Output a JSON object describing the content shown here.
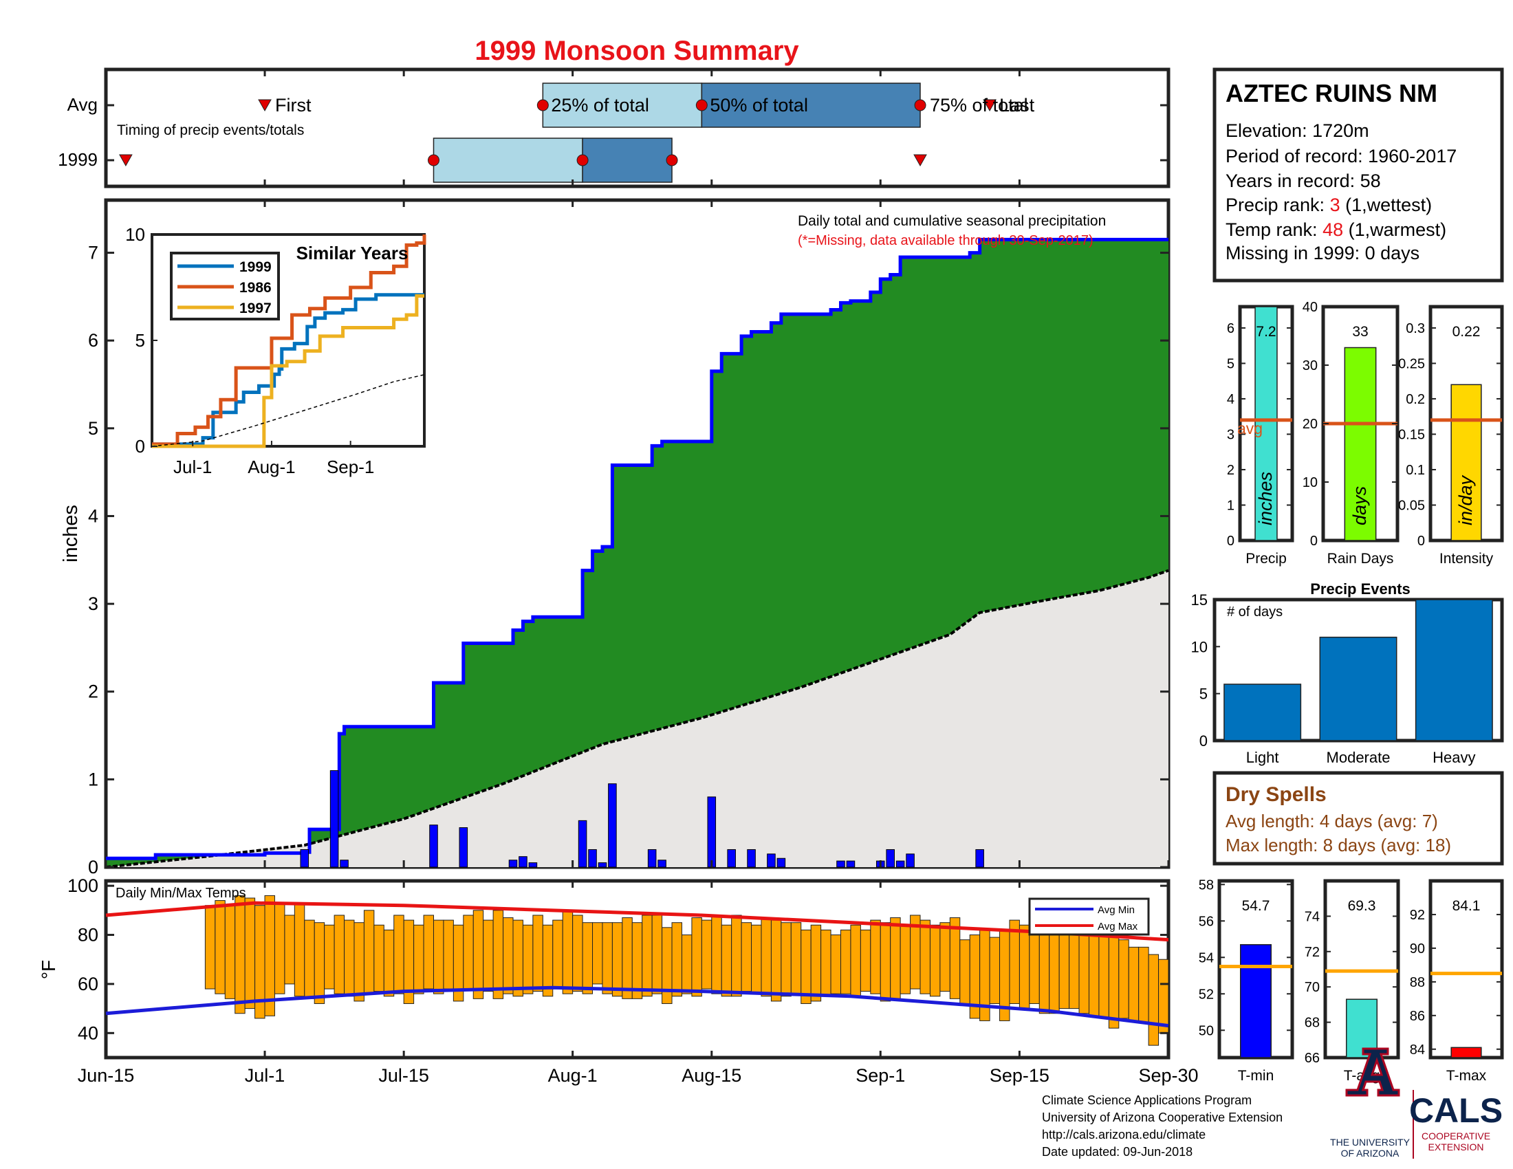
{
  "title": "1999 Monsoon Summary",
  "station": {
    "name": "AZTEC RUINS NM",
    "elevation": "Elevation: 1720m",
    "period": "Period of record: 1960-2017",
    "years": "Years in record: 58",
    "precip_rank_label": "Precip rank: ",
    "precip_rank_value": "3",
    "precip_rank_note": " (1,wettest)",
    "temp_rank_label": "Temp rank: ",
    "temp_rank_value": "48",
    "temp_rank_note": " (1,warmest)",
    "missing": "Missing in 1999: 0 days"
  },
  "colors": {
    "title_red": "#e8141a",
    "cumulative_fill": "#228b22",
    "cumulative_line": "#0000ff",
    "average_fill": "#e8e6e4",
    "daily_bars": "#0000ff",
    "timing_light": "#add8e6",
    "timing_dark": "#4682b4",
    "temp_bars": "#ffa500",
    "avg_min_line": "#1c1cd8",
    "avg_max_line": "#e81414",
    "orange_avg": "#d95319",
    "dry_spells_text": "#8b4513",
    "event_bars": "#0072bd"
  },
  "x_ticks": [
    "Jun-15",
    "Jul-1",
    "Jul-15",
    "Aug-1",
    "Aug-15",
    "Sep-1",
    "Sep-15",
    "Sep-30"
  ],
  "timing": {
    "row_labels": [
      "Avg",
      "1999"
    ],
    "caption": "Timing of precip events/totals",
    "first_label": "First",
    "last_label": "Last",
    "pct25_label": "25% of total",
    "pct50_label": "50% of total",
    "pct75_label": "75% of total",
    "avg": {
      "first": 16,
      "p25": 44,
      "p50": 60,
      "p75": 82,
      "last": 89
    },
    "y1999": {
      "first": 2,
      "p25": 33,
      "p50": 48,
      "p75": 57,
      "last": 82
    }
  },
  "chart_data": [
    {
      "type": "area",
      "name": "main_precip",
      "legend_title": "Daily total and cumulative seasonal precipitation",
      "legend_note": "(*=Missing, data available through 30-Sep-2017)",
      "ylabel": "inches",
      "ylim": [
        0,
        7.6
      ],
      "yticks": [
        0,
        1,
        2,
        3,
        4,
        5,
        6,
        7
      ],
      "x_range_days": [
        0,
        107
      ],
      "cumulative_1999": [
        [
          0,
          0.1
        ],
        [
          5,
          0.14
        ],
        [
          16,
          0.16
        ],
        [
          20,
          0.17
        ],
        [
          20.5,
          0.43
        ],
        [
          23,
          0.43
        ],
        [
          23.5,
          1.52
        ],
        [
          24,
          1.6
        ],
        [
          33,
          2.1
        ],
        [
          36,
          2.55
        ],
        [
          41,
          2.7
        ],
        [
          42,
          2.8
        ],
        [
          43,
          2.85
        ],
        [
          48,
          3.38
        ],
        [
          49,
          3.6
        ],
        [
          50,
          3.65
        ],
        [
          51,
          4.58
        ],
        [
          55,
          4.8
        ],
        [
          56,
          4.85
        ],
        [
          61,
          5.65
        ],
        [
          62,
          5.85
        ],
        [
          64,
          6.05
        ],
        [
          65,
          6.1
        ],
        [
          67,
          6.2
        ],
        [
          68,
          6.3
        ],
        [
          73,
          6.35
        ],
        [
          74,
          6.43
        ],
        [
          75,
          6.45
        ],
        [
          77,
          6.55
        ],
        [
          78,
          6.7
        ],
        [
          79,
          6.75
        ],
        [
          80,
          6.95
        ],
        [
          87,
          7.0
        ],
        [
          88,
          7.15
        ],
        [
          107,
          7.15
        ]
      ],
      "average_cumulative": [
        [
          0,
          0.0
        ],
        [
          10,
          0.12
        ],
        [
          20,
          0.25
        ],
        [
          30,
          0.55
        ],
        [
          40,
          0.95
        ],
        [
          50,
          1.4
        ],
        [
          60,
          1.7
        ],
        [
          70,
          2.05
        ],
        [
          75,
          2.25
        ],
        [
          80,
          2.45
        ],
        [
          85,
          2.65
        ],
        [
          88,
          2.9
        ],
        [
          95,
          3.05
        ],
        [
          100,
          3.15
        ],
        [
          105,
          3.3
        ],
        [
          107,
          3.38
        ]
      ],
      "daily_1999": [
        [
          20,
          0.2
        ],
        [
          23,
          1.1
        ],
        [
          24,
          0.08
        ],
        [
          33,
          0.48
        ],
        [
          36,
          0.45
        ],
        [
          41,
          0.08
        ],
        [
          42,
          0.12
        ],
        [
          43,
          0.05
        ],
        [
          48,
          0.53
        ],
        [
          49,
          0.2
        ],
        [
          50,
          0.05
        ],
        [
          51,
          0.95
        ],
        [
          55,
          0.2
        ],
        [
          56,
          0.08
        ],
        [
          61,
          0.8
        ],
        [
          63,
          0.2
        ],
        [
          65,
          0.2
        ],
        [
          67,
          0.15
        ],
        [
          68,
          0.1
        ],
        [
          74,
          0.07
        ],
        [
          75,
          0.07
        ],
        [
          78,
          0.07
        ],
        [
          79,
          0.2
        ],
        [
          80,
          0.07
        ],
        [
          81,
          0.15
        ],
        [
          88,
          0.2
        ]
      ]
    },
    {
      "type": "line",
      "name": "similar_years",
      "title": "Similar Years",
      "ylim": [
        0,
        10
      ],
      "yticks": [
        0,
        5,
        10
      ],
      "xticks": [
        "Jul-1",
        "Aug-1",
        "Sep-1"
      ],
      "series": [
        {
          "name": "1999",
          "color": "#0072bd",
          "values": [
            [
              0,
              0.1
            ],
            [
              20,
              0.4
            ],
            [
              24,
              1.6
            ],
            [
              33,
              2.1
            ],
            [
              36,
              2.55
            ],
            [
              42,
              2.85
            ],
            [
              48,
              3.4
            ],
            [
              50,
              3.65
            ],
            [
              51,
              4.6
            ],
            [
              56,
              4.85
            ],
            [
              61,
              5.65
            ],
            [
              64,
              6.05
            ],
            [
              68,
              6.3
            ],
            [
              75,
              6.45
            ],
            [
              80,
              6.95
            ],
            [
              88,
              7.15
            ],
            [
              107,
              7.15
            ]
          ]
        },
        {
          "name": "1986",
          "color": "#d95319",
          "values": [
            [
              0,
              0.1
            ],
            [
              10,
              0.6
            ],
            [
              17,
              0.9
            ],
            [
              22,
              1.4
            ],
            [
              27,
              2.2
            ],
            [
              33,
              3.7
            ],
            [
              40,
              3.7
            ],
            [
              47,
              5.1
            ],
            [
              55,
              6.2
            ],
            [
              62,
              6.5
            ],
            [
              68,
              7.0
            ],
            [
              73,
              7.0
            ],
            [
              78,
              7.5
            ],
            [
              86,
              8.2
            ],
            [
              95,
              8.5
            ],
            [
              100,
              9.5
            ],
            [
              104,
              9.6
            ],
            [
              107,
              10.0
            ]
          ]
        },
        {
          "name": "1997",
          "color": "#edb120",
          "values": [
            [
              0,
              0.0
            ],
            [
              40,
              0.0
            ],
            [
              44,
              2.3
            ],
            [
              47,
              3.8
            ],
            [
              53,
              4.0
            ],
            [
              60,
              4.5
            ],
            [
              66,
              5.2
            ],
            [
              70,
              5.2
            ],
            [
              75,
              5.6
            ],
            [
              80,
              5.6
            ],
            [
              90,
              5.6
            ],
            [
              95,
              6.0
            ],
            [
              100,
              6.2
            ],
            [
              104,
              7.1
            ],
            [
              107,
              7.1
            ]
          ]
        },
        {
          "name": "average",
          "color": "#000000",
          "dashed": true,
          "values": [
            [
              0,
              0.0
            ],
            [
              20,
              0.25
            ],
            [
              40,
              0.95
            ],
            [
              60,
              1.7
            ],
            [
              80,
              2.45
            ],
            [
              95,
              3.05
            ],
            [
              107,
              3.38
            ]
          ]
        }
      ]
    },
    {
      "type": "bar",
      "name": "daily_temps",
      "title": "Daily Min/Max Temps",
      "ylabel": "°F",
      "ylim": [
        30,
        102
      ],
      "yticks": [
        40,
        60,
        80,
        100
      ],
      "legend": [
        "Avg Min",
        "Avg Max"
      ],
      "bar_range": [
        10,
        107
      ],
      "avg_min": [
        [
          0,
          48
        ],
        [
          15,
          53
        ],
        [
          30,
          57
        ],
        [
          45,
          58.5
        ],
        [
          60,
          57
        ],
        [
          75,
          55
        ],
        [
          85,
          52
        ],
        [
          95,
          49
        ],
        [
          107,
          43
        ]
      ],
      "avg_max": [
        [
          0,
          88
        ],
        [
          15,
          93
        ],
        [
          30,
          92
        ],
        [
          45,
          90
        ],
        [
          60,
          88
        ],
        [
          75,
          85
        ],
        [
          85,
          83
        ],
        [
          95,
          81
        ],
        [
          107,
          78
        ]
      ],
      "daily_min": [
        58,
        56,
        54,
        48,
        50,
        46,
        47,
        56,
        60,
        55,
        54,
        52,
        58,
        56,
        55,
        53,
        56,
        57,
        55,
        56,
        52,
        56,
        58,
        56,
        58,
        53,
        58,
        54,
        57,
        54,
        56,
        55,
        56,
        57,
        55,
        58,
        56,
        57,
        56,
        60,
        56,
        55,
        54,
        54,
        55,
        56,
        52,
        55,
        56,
        55,
        58,
        56,
        55,
        55,
        57,
        56,
        55,
        53,
        55,
        56,
        52,
        53,
        55,
        56,
        56,
        55,
        57,
        56,
        53,
        54,
        56,
        58,
        56,
        55,
        57,
        54,
        52,
        46,
        45,
        52,
        45,
        52,
        50,
        52,
        48,
        48,
        50,
        50,
        48,
        47,
        46,
        42,
        46,
        45,
        44,
        35,
        40
      ],
      "daily_max": [
        92,
        94,
        92,
        96,
        95,
        92,
        96,
        93,
        88,
        93,
        86,
        85,
        84,
        88,
        86,
        85,
        90,
        84,
        82,
        88,
        86,
        84,
        88,
        86,
        86,
        84,
        88,
        90,
        86,
        90,
        87,
        86,
        84,
        88,
        84,
        86,
        90,
        88,
        85,
        85,
        85,
        85,
        87,
        85,
        88,
        88,
        83,
        85,
        80,
        87,
        86,
        88,
        84,
        88,
        85,
        84,
        87,
        86,
        85,
        85,
        82,
        84,
        82,
        80,
        82,
        84,
        82,
        86,
        85,
        87,
        84,
        88,
        86,
        84,
        85,
        87,
        78,
        80,
        82,
        79,
        82,
        86,
        84,
        85,
        86,
        84,
        82,
        80,
        80,
        82,
        80,
        82,
        78,
        75,
        75,
        72,
        70
      ]
    },
    {
      "type": "bar",
      "name": "precip_bar",
      "xlabel": "Precip",
      "unit_label": "inches",
      "value": 7.2,
      "value_label": "7.2",
      "avg": 3.4,
      "avg_label": "avg",
      "ylim": [
        0,
        6.6
      ],
      "yticks": [
        0,
        1,
        2,
        3,
        4,
        5,
        6
      ],
      "color": "#40e0d0"
    },
    {
      "type": "bar",
      "name": "rain_days_bar",
      "xlabel": "Rain Days",
      "unit_label": "days",
      "value": 33,
      "value_label": "33",
      "avg": 20,
      "ylim": [
        0,
        40
      ],
      "yticks": [
        0,
        10,
        20,
        30,
        40
      ],
      "color": "#7cfc00"
    },
    {
      "type": "bar",
      "name": "intensity_bar",
      "xlabel": "Intensity",
      "unit_label": "in/day",
      "value": 0.22,
      "value_label": "0.22",
      "avg": 0.17,
      "ylim": [
        0,
        0.33
      ],
      "yticks": [
        "0",
        "0.05",
        "0.1",
        "0.15",
        "0.2",
        "0.25",
        "0.3"
      ],
      "ytick_values": [
        0,
        0.05,
        0.1,
        0.15,
        0.2,
        0.25,
        0.3
      ],
      "color": "#ffd700"
    },
    {
      "type": "bar",
      "name": "precip_events",
      "title": "Precip Events",
      "ylabel_inner": "# of days",
      "categories": [
        "Light",
        "Moderate",
        "Heavy"
      ],
      "values": [
        6,
        11,
        15
      ],
      "ylim": [
        0,
        15
      ],
      "yticks": [
        0,
        5,
        10,
        15
      ]
    },
    {
      "type": "bar",
      "name": "tmin_bar",
      "xlabel": "T-min",
      "value": 54.7,
      "value_label": "54.7",
      "avg": 53.5,
      "ylim": [
        48.5,
        58.2
      ],
      "yticks": [
        50,
        52,
        54,
        56,
        58
      ],
      "color": "#0000ff"
    },
    {
      "type": "bar",
      "name": "tavg_bar",
      "xlabel": "T-avg",
      "value": 69.3,
      "value_label": "69.3",
      "avg": 70.9,
      "ylim": [
        66,
        76
      ],
      "yticks": [
        66,
        68,
        70,
        72,
        74
      ],
      "color": "#40e0d0"
    },
    {
      "type": "bar",
      "name": "tmax_bar",
      "xlabel": "T-max",
      "value": 84.1,
      "value_label": "84.1",
      "avg": 88.5,
      "ylim": [
        83.5,
        94
      ],
      "yticks": [
        84,
        86,
        88,
        90,
        92
      ],
      "color": "#ff0000"
    }
  ],
  "dry_spells": {
    "title": "Dry Spells",
    "avg_line": "Avg length: 4 days (avg: 7)",
    "max_line": "Max length: 8 days (avg: 18)"
  },
  "footer": {
    "line1": "Climate Science Applications Program",
    "line2": "University of Arizona Cooperative Extension",
    "line3": "http://cals.arizona.edu/climate",
    "line4": " Date updated: 09-Jun-2018",
    "ua_logo_text": [
      "THE UNIVERSITY",
      "OF ARIZONA"
    ],
    "cals_logo_text": [
      "CALS",
      "COOPERATIVE",
      "EXTENSION"
    ]
  }
}
